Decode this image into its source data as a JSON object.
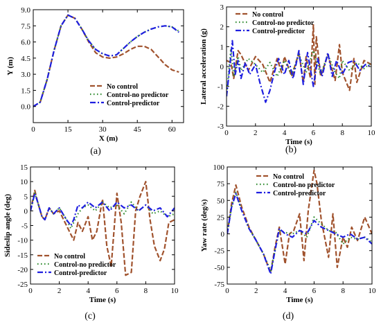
{
  "colors": {
    "no_control": "#a0522d",
    "control_no_predictor": "#2e8b2e",
    "control_predictor": "#1f1fe0"
  },
  "chart_data": [
    {
      "type": "line",
      "panel_label": "(a)",
      "xlabel": "X (m)",
      "ylabel": "Y (m)",
      "xlim": [
        0,
        65
      ],
      "ylim": [
        -1.5,
        9
      ],
      "xticks": [
        0,
        15,
        30,
        45,
        60
      ],
      "yticks": [
        0.0,
        1.5,
        3.0,
        4.5,
        6.0,
        7.5,
        9.0
      ],
      "ytick_decimals": 1,
      "legend_position": "lower-right",
      "series": [
        {
          "name": "No control",
          "style": "no_control",
          "x": [
            0,
            3,
            6,
            9,
            12,
            15,
            18,
            21,
            24,
            27,
            30,
            33,
            36,
            39,
            42,
            45,
            48,
            51,
            54,
            57,
            60,
            63
          ],
          "y": [
            0.0,
            0.4,
            2.5,
            5.2,
            7.5,
            8.5,
            8.2,
            7.2,
            6.0,
            5.0,
            4.6,
            4.5,
            4.6,
            4.9,
            5.3,
            5.6,
            5.6,
            5.3,
            4.6,
            3.9,
            3.4,
            3.2
          ]
        },
        {
          "name": "Control-no predictor",
          "style": "control_no_predictor",
          "x": [
            0,
            3,
            6,
            9,
            12,
            15,
            18,
            21,
            24,
            27,
            30,
            33,
            36,
            39,
            42,
            45,
            48,
            51,
            54,
            57,
            60,
            63
          ],
          "y": [
            0.0,
            0.4,
            2.5,
            5.2,
            7.5,
            8.5,
            8.2,
            7.2,
            6.1,
            5.3,
            4.9,
            4.7,
            4.8,
            5.4,
            6.0,
            6.5,
            6.9,
            7.2,
            7.4,
            7.5,
            7.4,
            7.0
          ]
        },
        {
          "name": "Control-predictor",
          "style": "control_predictor",
          "x": [
            0,
            3,
            6,
            9,
            12,
            15,
            18,
            21,
            24,
            27,
            30,
            33,
            36,
            39,
            42,
            45,
            48,
            51,
            54,
            57,
            60,
            63
          ],
          "y": [
            0.0,
            0.4,
            2.5,
            5.2,
            7.5,
            8.5,
            8.2,
            7.2,
            6.1,
            5.3,
            4.9,
            4.7,
            4.8,
            5.4,
            6.0,
            6.5,
            6.9,
            7.2,
            7.4,
            7.5,
            7.4,
            6.9
          ]
        }
      ]
    },
    {
      "type": "line",
      "panel_label": "(b)",
      "xlabel": "Time (s)",
      "ylabel": "Lateral acceleration (g)",
      "xlim": [
        0,
        10
      ],
      "ylim": [
        -3,
        3
      ],
      "xticks": [
        0,
        2,
        4,
        6,
        8,
        10
      ],
      "yticks": [
        -3,
        -2,
        -1,
        0,
        1,
        2,
        3
      ],
      "ytick_decimals": 0,
      "legend_position": "top-left",
      "series": [
        {
          "name": "No control",
          "style": "no_control",
          "x": [
            0,
            0.3,
            0.5,
            0.8,
            1.0,
            1.5,
            2.0,
            2.5,
            3.0,
            3.5,
            3.8,
            4.0,
            4.5,
            5.0,
            5.3,
            5.5,
            5.8,
            6.0,
            6.1,
            6.2,
            6.5,
            7.0,
            7.5,
            7.8,
            8.0,
            8.5,
            8.8,
            9.0,
            9.5,
            10.0
          ],
          "y": [
            0.3,
            0.2,
            -0.6,
            0.8,
            0.6,
            -0.2,
            0.5,
            0.1,
            -0.8,
            0.4,
            -0.3,
            0.5,
            -0.5,
            0.7,
            -0.8,
            0.5,
            -0.6,
            2.1,
            -0.9,
            1.5,
            -0.5,
            0.6,
            -0.7,
            1.1,
            -0.3,
            -1.2,
            0.4,
            -0.8,
            0.3,
            0.1
          ]
        },
        {
          "name": "Control-no predictor",
          "style": "control_no_predictor",
          "x": [
            0,
            0.3,
            0.5,
            0.8,
            1.0,
            1.5,
            2.0,
            2.5,
            3.0,
            3.5,
            4.0,
            4.5,
            5.0,
            5.5,
            6.0,
            6.5,
            7.0,
            7.5,
            7.8,
            8.0,
            8.5,
            9.0,
            9.5,
            10.0
          ],
          "y": [
            -1.5,
            0.9,
            -0.5,
            0.5,
            -0.2,
            0.4,
            0.1,
            -0.3,
            0.2,
            -0.5,
            0.3,
            -0.4,
            0.6,
            -0.3,
            0.8,
            -0.4,
            0.6,
            -0.3,
            -0.6,
            0.3,
            -0.2,
            0.2,
            -0.1,
            0.2
          ]
        },
        {
          "name": "Control-predictor",
          "style": "control_predictor",
          "x": [
            0,
            0.2,
            0.4,
            0.6,
            0.8,
            1.0,
            1.3,
            1.6,
            2.0,
            2.3,
            2.7,
            3.0,
            3.3,
            3.6,
            4.0,
            4.3,
            4.6,
            5.0,
            5.3,
            5.6,
            6.0,
            6.3,
            6.6,
            7.0,
            7.3,
            7.6,
            8.0,
            8.4,
            8.8,
            9.2,
            9.6,
            10.0
          ],
          "y": [
            -1.5,
            -0.2,
            1.3,
            -0.4,
            0.3,
            -0.6,
            0.2,
            -0.4,
            0.1,
            -0.8,
            -1.8,
            -1.2,
            -0.3,
            0.4,
            -0.4,
            0.3,
            -0.6,
            0.8,
            -0.9,
            0.7,
            -1.0,
            0.4,
            -0.5,
            0.7,
            -0.5,
            0.3,
            -0.4,
            0.2,
            0.3,
            -0.2,
            0.1,
            0.0
          ]
        }
      ]
    },
    {
      "type": "line",
      "panel_label": "(c)",
      "xlabel": "Time (s)",
      "ylabel": "Sideslip angle (deg)",
      "xlim": [
        0,
        10
      ],
      "ylim": [
        -25,
        15
      ],
      "xticks": [
        0,
        2,
        4,
        6,
        8,
        10
      ],
      "yticks": [
        -25,
        -20,
        -15,
        -10,
        -5,
        0,
        5,
        10,
        15
      ],
      "ytick_decimals": 0,
      "legend_position": "lower-left",
      "series": [
        {
          "name": "No control",
          "style": "no_control",
          "x": [
            0,
            0.3,
            0.5,
            0.8,
            1.0,
            1.3,
            1.6,
            2.0,
            2.5,
            2.8,
            3.0,
            3.3,
            3.6,
            4.0,
            4.3,
            4.6,
            5.0,
            5.3,
            5.6,
            6.0,
            6.3,
            6.6,
            7.0,
            7.3,
            7.6,
            8.0,
            8.3,
            8.6,
            9.0,
            9.3,
            9.6,
            10.0
          ],
          "y": [
            0,
            7,
            3,
            -2,
            -3,
            1,
            -1,
            0,
            -5,
            -8,
            -10,
            -4,
            -7,
            -2,
            -10,
            -7,
            4,
            -12,
            -19,
            6,
            -4,
            -22,
            -21,
            0,
            5,
            10,
            -3,
            -12,
            -17,
            -13,
            -4,
            -3
          ]
        },
        {
          "name": "Control-no predictor",
          "style": "control_no_predictor",
          "x": [
            0,
            0.3,
            0.5,
            0.8,
            1.0,
            1.3,
            1.6,
            2.0,
            2.5,
            2.8,
            3.0,
            3.3,
            3.6,
            4.0,
            4.5,
            5.0,
            5.5,
            6.0,
            6.5,
            7.0,
            7.5,
            8.0,
            8.5,
            9.0,
            9.5,
            10.0
          ],
          "y": [
            0,
            6,
            3,
            -2,
            -3,
            1,
            -1,
            1,
            -3,
            -6,
            -4,
            -1,
            1,
            2,
            0,
            3,
            1,
            2,
            -1,
            3,
            0,
            2,
            -1,
            0,
            -2,
            -1
          ]
        },
        {
          "name": "Control-predictor",
          "style": "control_predictor",
          "x": [
            0,
            0.3,
            0.5,
            0.8,
            1.0,
            1.3,
            1.6,
            2.0,
            2.5,
            2.8,
            3.0,
            3.3,
            3.6,
            4.0,
            4.5,
            5.0,
            5.5,
            6.0,
            6.5,
            7.0,
            7.5,
            8.0,
            8.5,
            9.0,
            9.5,
            10.0
          ],
          "y": [
            0,
            6,
            3,
            -2,
            -3,
            1,
            -1,
            1,
            -3,
            -5,
            -3,
            2,
            1,
            3,
            1,
            3,
            0,
            3,
            1,
            2,
            0,
            2,
            0,
            1,
            -2,
            1
          ]
        }
      ]
    },
    {
      "type": "line",
      "panel_label": "(d)",
      "xlabel": "Time (s)",
      "ylabel": "Yaw rate (deg/s)",
      "xlim": [
        0,
        10
      ],
      "ylim": [
        -75,
        100
      ],
      "xticks": [
        0,
        2,
        4,
        6,
        8,
        10
      ],
      "yticks": [
        -75,
        -50,
        -25,
        0,
        25,
        50,
        75,
        100
      ],
      "ytick_decimals": 0,
      "legend_position": "top-right",
      "series": [
        {
          "name": "No control",
          "style": "no_control",
          "x": [
            0,
            0.3,
            0.6,
            1.0,
            1.5,
            2.0,
            2.5,
            3.0,
            3.3,
            3.6,
            4.0,
            4.3,
            4.6,
            5.0,
            5.3,
            5.6,
            6.0,
            6.2,
            6.5,
            7.0,
            7.3,
            7.6,
            8.0,
            8.3,
            8.6,
            9.0,
            9.5,
            10.0
          ],
          "y": [
            0,
            45,
            73,
            40,
            10,
            -10,
            -30,
            -58,
            -20,
            10,
            -45,
            0,
            5,
            30,
            -40,
            35,
            95,
            75,
            20,
            -35,
            30,
            -50,
            -5,
            -20,
            10,
            -10,
            25,
            0
          ]
        },
        {
          "name": "Control-no predictor",
          "style": "control_no_predictor",
          "x": [
            0,
            0.3,
            0.6,
            1.0,
            1.5,
            2.0,
            2.5,
            3.0,
            3.3,
            3.6,
            4.0,
            4.5,
            5.0,
            5.5,
            6.0,
            6.5,
            7.0,
            7.5,
            8.0,
            8.5,
            9.0,
            9.5,
            10.0
          ],
          "y": [
            0,
            40,
            62,
            35,
            8,
            -10,
            -30,
            -55,
            -25,
            5,
            2,
            0,
            5,
            -5,
            25,
            15,
            5,
            2,
            -15,
            -5,
            -8,
            -5,
            -12
          ]
        },
        {
          "name": "Control-predictor",
          "style": "control_predictor",
          "x": [
            0,
            0.3,
            0.6,
            1.0,
            1.5,
            2.0,
            2.5,
            3.0,
            3.3,
            3.6,
            4.0,
            4.5,
            5.0,
            5.5,
            6.0,
            6.5,
            7.0,
            7.5,
            8.0,
            8.5,
            9.0,
            9.5,
            10.0
          ],
          "y": [
            0,
            40,
            60,
            35,
            8,
            -10,
            -30,
            -60,
            -25,
            8,
            0,
            -5,
            5,
            0,
            20,
            10,
            5,
            0,
            -5,
            0,
            -8,
            -5,
            -15
          ]
        }
      ]
    }
  ]
}
